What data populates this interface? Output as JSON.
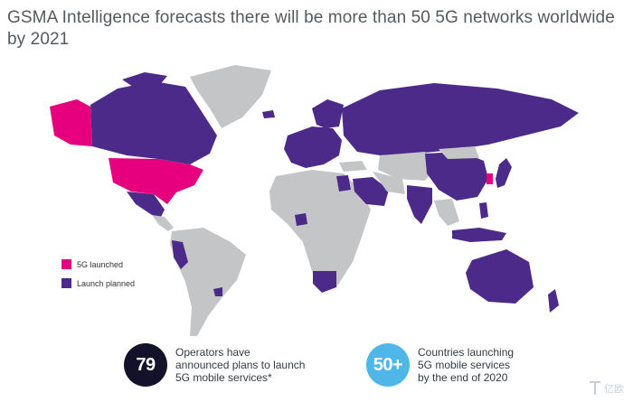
{
  "title": "GSMA Intelligence forecasts there will be more than 50 5G networks worldwide by 2021",
  "colors": {
    "launched": "#e6007e",
    "planned": "#4b2a8a",
    "other": "#c3c5c7",
    "stat_dark": "#14112b",
    "stat_light": "#4fb7e8"
  },
  "legend": [
    {
      "label": "5G launched",
      "color": "#e6007e"
    },
    {
      "label": "Launch planned",
      "color": "#4b2a8a"
    }
  ],
  "stats": [
    {
      "value": "79",
      "text": "Operators have\nannounced plans to launch\n5G mobile services*"
    },
    {
      "value": "50+",
      "text": "Countries launching\n5G mobile services\nby the end of 2020"
    }
  ],
  "watermark": "亿欧"
}
